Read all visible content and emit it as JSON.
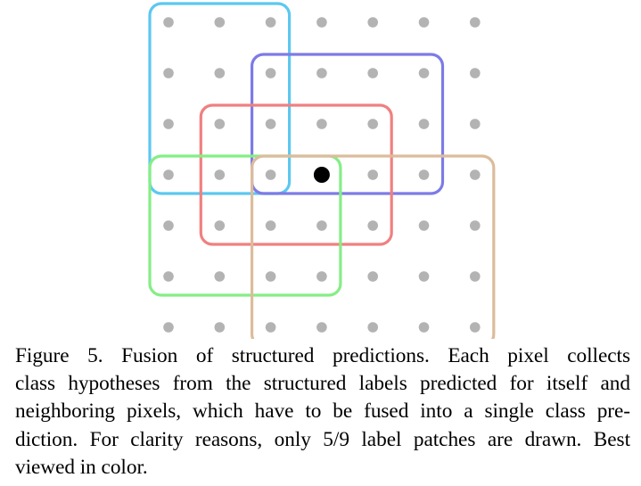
{
  "figure": {
    "grid": {
      "rows": 7,
      "cols": 7,
      "dot_color": "#b3b3b3"
    },
    "highlight_dot": {
      "row": 3,
      "col": 3,
      "color": "#000000"
    },
    "patches": [
      {
        "name": "patch-cyan",
        "color": "#5cc8f0",
        "rows": [
          0,
          3
        ],
        "cols": [
          0,
          2
        ]
      },
      {
        "name": "patch-blue",
        "color": "#7d7be6",
        "rows": [
          1,
          3
        ],
        "cols": [
          2,
          5
        ]
      },
      {
        "name": "patch-red",
        "color": "#f08080",
        "rows": [
          2,
          4
        ],
        "cols": [
          1,
          4
        ]
      },
      {
        "name": "patch-green",
        "color": "#85ee85",
        "rows": [
          3,
          5
        ],
        "cols": [
          0,
          3
        ]
      },
      {
        "name": "patch-tan",
        "color": "#dcbc9c",
        "rows": [
          3,
          6
        ],
        "cols": [
          2,
          6
        ]
      }
    ]
  },
  "caption": {
    "lines": [
      "Figure 5.  Fusion of structured predictions.  Each pixel collects",
      "class hypotheses from the structured labels predicted for itself and",
      "neighboring pixels, which have to be fused into a single class pre-",
      "diction. For clarity reasons, only 5/9 label patches are drawn. Best",
      "viewed in color."
    ]
  }
}
